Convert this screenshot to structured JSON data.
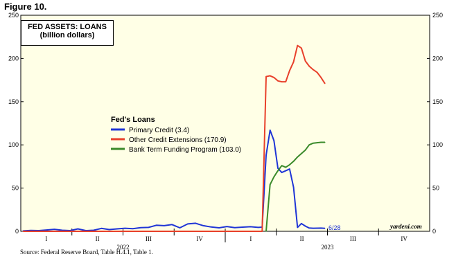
{
  "figure_label": "Figure 10.",
  "source": "Source: Federal Reserve Board, Table H.4.1, Table 1.",
  "credit": "yardeni.com",
  "end_label": "6/28",
  "colors": {
    "plot_background": "#ffffe6",
    "primary_credit": "#1f35d6",
    "other_credit": "#e8402a",
    "btfp": "#3a8a2a"
  },
  "chart_data": {
    "type": "line",
    "title": "FED ASSETS: LOANS",
    "subtitle": "(billion dollars)",
    "legend_title": "Fed's Loans",
    "legend_placement": "center",
    "ylim": [
      0,
      250
    ],
    "y_ticks": [
      "0",
      "50",
      "100",
      "150",
      "200",
      "250"
    ],
    "quarters": [
      "I",
      "II",
      "III",
      "IV",
      "I",
      "II",
      "III",
      "IV"
    ],
    "years": [
      "2022",
      "2023"
    ],
    "grid": false,
    "series": [
      {
        "name": "Primary Credit (3.4)",
        "color_key": "primary_credit",
        "x": [
          "2022-01-05",
          "2022-01-19",
          "2022-02-02",
          "2022-02-16",
          "2022-03-02",
          "2022-03-16",
          "2022-03-30",
          "2022-04-13",
          "2022-04-27",
          "2022-05-11",
          "2022-05-25",
          "2022-06-08",
          "2022-06-22",
          "2022-07-06",
          "2022-07-20",
          "2022-08-03",
          "2022-08-17",
          "2022-08-31",
          "2022-09-14",
          "2022-09-28",
          "2022-10-12",
          "2022-10-26",
          "2022-11-09",
          "2022-11-23",
          "2022-12-07",
          "2022-12-21",
          "2023-01-04",
          "2023-01-18",
          "2023-02-01",
          "2023-02-15",
          "2023-03-01",
          "2023-03-08",
          "2023-03-15",
          "2023-03-22",
          "2023-03-29",
          "2023-04-05",
          "2023-04-12",
          "2023-04-19",
          "2023-04-26",
          "2023-05-03",
          "2023-05-10",
          "2023-05-17",
          "2023-05-24",
          "2023-05-31",
          "2023-06-07",
          "2023-06-14",
          "2023-06-21",
          "2023-06-28"
        ],
        "values": [
          0.5,
          1.0,
          0.8,
          1.5,
          2.3,
          1.2,
          0.8,
          2.8,
          0.8,
          1.2,
          3.4,
          2.0,
          2.8,
          3.5,
          3.0,
          4.2,
          4.5,
          7.0,
          6.5,
          7.8,
          4.0,
          8.5,
          9.3,
          6.5,
          5.0,
          4.0,
          5.5,
          4.2,
          4.8,
          5.3,
          4.5,
          4.8,
          88.0,
          117.0,
          105.0,
          73.0,
          68.0,
          70.0,
          72.0,
          51.0,
          4.5,
          9.0,
          6.0,
          3.8,
          3.5,
          3.6,
          3.7,
          3.4
        ]
      },
      {
        "name": "Other Credit Extensions (170.9)",
        "color_key": "other_credit",
        "x": [
          "2022-01-05",
          "2023-03-08",
          "2023-03-15",
          "2023-03-22",
          "2023-03-29",
          "2023-04-05",
          "2023-04-12",
          "2023-04-19",
          "2023-04-26",
          "2023-05-03",
          "2023-05-10",
          "2023-05-17",
          "2023-05-24",
          "2023-05-31",
          "2023-06-07",
          "2023-06-14",
          "2023-06-21",
          "2023-06-28"
        ],
        "values": [
          0,
          0,
          179,
          180,
          178,
          174,
          173,
          173,
          186,
          196,
          215,
          212,
          197,
          191,
          187,
          184,
          178,
          170.9
        ]
      },
      {
        "name": "Bank Term Funding Program (103.0)",
        "color_key": "btfp",
        "x": [
          "2023-03-15",
          "2023-03-22",
          "2023-03-29",
          "2023-04-05",
          "2023-04-12",
          "2023-04-19",
          "2023-04-26",
          "2023-05-03",
          "2023-05-10",
          "2023-05-17",
          "2023-05-24",
          "2023-05-31",
          "2023-06-07",
          "2023-06-14",
          "2023-06-21",
          "2023-06-28"
        ],
        "values": [
          0,
          54,
          63,
          70,
          76,
          74,
          77,
          81,
          86,
          90,
          94,
          100,
          102,
          102.5,
          103.0,
          103.0
        ]
      }
    ]
  }
}
